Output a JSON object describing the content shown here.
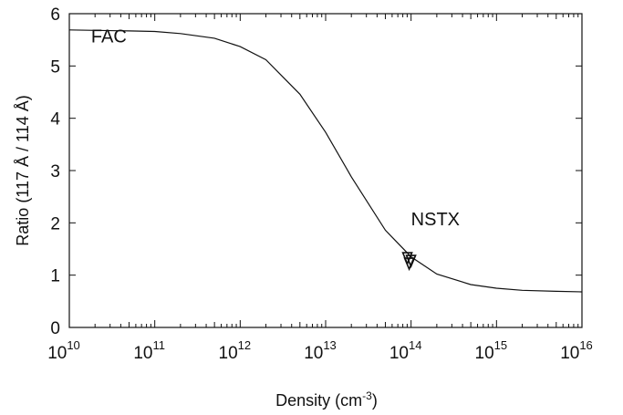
{
  "chart_data": {
    "type": "line",
    "title": "",
    "xlabel": "Density (cm",
    "xlabel_sup": "-3",
    "xlabel_close": ")",
    "ylabel": "Ratio (117 Å / 114 Å)",
    "x_scale": "log",
    "xlim": [
      10000000000.0,
      1e+16
    ],
    "ylim": [
      0,
      6
    ],
    "grid": false,
    "x_ticks": [
      {
        "base": "10",
        "exp": "10",
        "value": 10000000000.0
      },
      {
        "base": "10",
        "exp": "11",
        "value": 100000000000.0
      },
      {
        "base": "10",
        "exp": "12",
        "value": 1000000000000.0
      },
      {
        "base": "10",
        "exp": "13",
        "value": 10000000000000.0
      },
      {
        "base": "10",
        "exp": "14",
        "value": 100000000000000.0
      },
      {
        "base": "10",
        "exp": "15",
        "value": 1000000000000000.0
      },
      {
        "base": "10",
        "exp": "16",
        "value": 1e+16
      }
    ],
    "y_ticks": [
      "0",
      "1",
      "2",
      "3",
      "4",
      "5",
      "6"
    ],
    "series": [
      {
        "name": "FAC",
        "x": [
          10000000000.0,
          20000000000.0,
          50000000000.0,
          100000000000.0,
          200000000000.0,
          500000000000.0,
          1000000000000.0,
          2000000000000.0,
          5000000000000.0,
          10000000000000.0,
          20000000000000.0,
          50000000000000.0,
          100000000000000.0,
          200000000000000.0,
          500000000000000.0,
          1000000000000000.0,
          2000000000000000.0,
          5000000000000000.0,
          1e+16
        ],
        "y": [
          5.69,
          5.68,
          5.67,
          5.66,
          5.62,
          5.53,
          5.37,
          5.12,
          4.46,
          3.73,
          2.88,
          1.86,
          1.35,
          1.02,
          0.82,
          0.75,
          0.71,
          0.69,
          0.68
        ]
      }
    ],
    "measurements": [
      {
        "name": "NSTX",
        "x": 95000000000000.0,
        "y": 1.22
      }
    ],
    "annotations": [
      {
        "text": "FAC",
        "x": 18000000000.0,
        "y": 5.45
      },
      {
        "text": "NSTX",
        "x": 100000000000000.0,
        "y": 1.95
      }
    ]
  }
}
